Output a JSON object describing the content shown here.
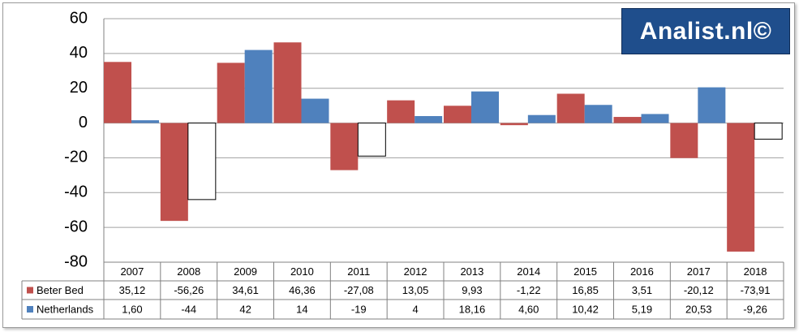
{
  "chart_data": {
    "type": "bar",
    "categories": [
      "2007",
      "2008",
      "2009",
      "2010",
      "2011",
      "2012",
      "2013",
      "2014",
      "2015",
      "2016",
      "2017",
      "2018"
    ],
    "series": [
      {
        "name": "Beter Bed",
        "color": "#c0504d",
        "values": [
          35.12,
          -56.26,
          34.61,
          46.36,
          -27.08,
          13.05,
          9.93,
          -1.22,
          16.85,
          3.51,
          -20.12,
          -73.91
        ],
        "labels": [
          "35,12",
          "-56,26",
          "34,61",
          "46,36",
          "-27,08",
          "13,05",
          "9,93",
          "-1,22",
          "16,85",
          "3,51",
          "-20,12",
          "-73,91"
        ]
      },
      {
        "name": "Netherlands",
        "color": "#4f81bd",
        "values": [
          1.6,
          -44,
          42,
          14,
          -19,
          4,
          18.16,
          4.6,
          10.42,
          5.19,
          20.53,
          -9.26
        ],
        "labels": [
          "1,60",
          "-44",
          "42",
          "14",
          "-19",
          "4",
          "18,16",
          "4,60",
          "10,42",
          "5,19",
          "20,53",
          "-9,26"
        ],
        "negative_fill": "#ffffff"
      }
    ],
    "ylim": [
      -80,
      60
    ],
    "yticks": [
      "60",
      "40",
      "20",
      "0",
      "-20",
      "-40",
      "-60",
      "-80"
    ],
    "ytick_values": [
      60,
      40,
      20,
      0,
      -20,
      -40,
      -60,
      -80
    ],
    "grid": true,
    "legend": "data-table",
    "title": "",
    "xlabel": "",
    "ylabel": ""
  },
  "logo": {
    "text": "Analist.nl©",
    "color": "#1f4e8c"
  }
}
